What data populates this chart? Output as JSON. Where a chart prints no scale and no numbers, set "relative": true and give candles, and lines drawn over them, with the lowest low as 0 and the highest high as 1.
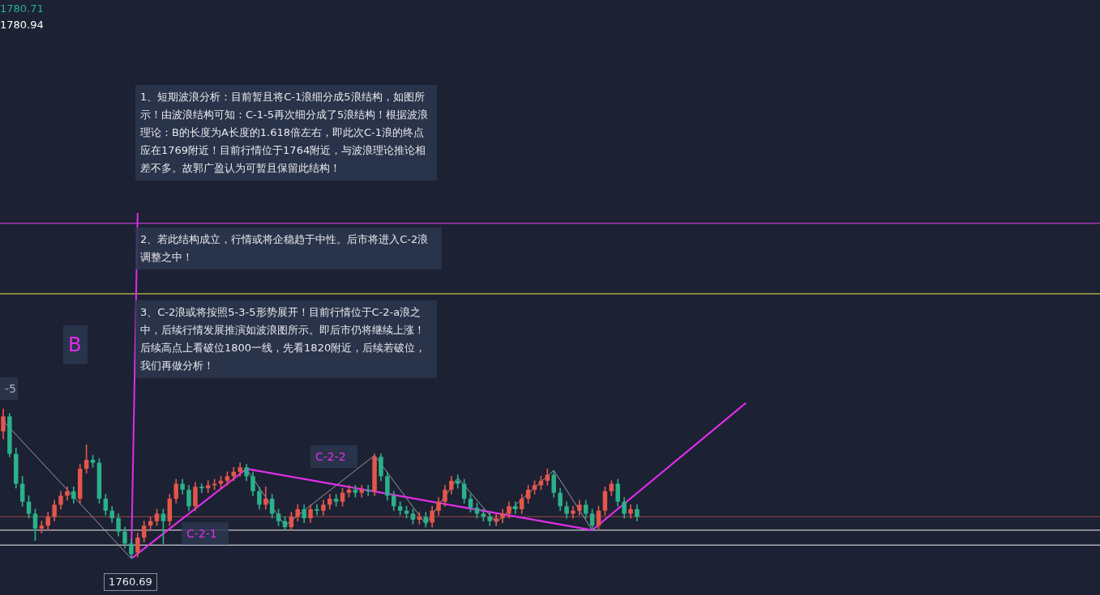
{
  "chart_data": {
    "type": "candlestick",
    "relative": true,
    "legend": false,
    "annotations": [
      "1、短期波浪分析：目前暂且将C-1浪细分成5浪结构，如图所示！由波浪结构可知：C-1-5再次细分成了5浪结构！根据波浪理论：B的长度为A长度的1.618倍左右，即此次C-1浪的终点应在1769附近！目前行情位于1764附近，与波浪理论推论相差不多。故郭广盈认为可暂且保留此结构！",
      "2、若此结构成立，行情或将企稳趋于中性。后市将进入C-2浪调整之中！",
      "3、C-2浪或将按照5-3-5形势展开！目前行情位于C-2-a浪之中，后续行情发展推演如波浪图所示。即后市仍将继续上涨！后续高点上看破位1800一线，先看1820附近，后续若破位，我们再做分析！",
      "B",
      "-5",
      "C-2-1",
      "C-2-2",
      "1760.69",
      "1780.71",
      "1780.94"
    ],
    "categories": [
      null,
      null,
      null,
      null,
      null,
      null,
      null,
      null,
      null,
      null,
      null,
      null,
      null,
      null,
      null,
      null,
      null,
      null,
      null,
      null,
      null,
      null,
      null,
      null,
      null,
      null,
      null,
      null,
      null,
      null,
      null,
      null,
      null,
      null,
      null,
      null,
      null,
      null,
      null,
      null,
      null,
      null,
      null,
      null,
      null,
      null,
      null,
      null,
      null,
      null,
      null,
      null,
      null,
      null,
      null,
      null,
      null,
      null,
      null,
      null,
      null,
      null,
      null,
      null,
      null,
      null,
      null,
      null,
      null,
      null,
      null,
      null,
      null,
      null,
      null,
      null,
      null,
      null,
      null,
      null,
      null,
      null,
      null,
      null,
      null,
      null,
      null,
      null,
      null,
      null,
      null,
      null,
      null,
      null,
      null,
      null,
      null,
      null,
      null,
      null,
      null,
      null,
      null,
      null,
      null,
      null,
      null,
      null,
      null,
      null,
      null,
      null,
      null,
      null,
      null,
      null,
      null,
      null
    ],
    "ohlc": [
      [
        0.85,
        1.0,
        0.8,
        0.95
      ],
      [
        0.95,
        0.97,
        0.68,
        0.7
      ],
      [
        0.7,
        0.74,
        0.47,
        0.5
      ],
      [
        0.5,
        0.55,
        0.35,
        0.38
      ],
      [
        0.38,
        0.42,
        0.27,
        0.3
      ],
      [
        0.3,
        0.33,
        0.12,
        0.2
      ],
      [
        0.2,
        0.25,
        0.17,
        0.22
      ],
      [
        0.22,
        0.31,
        0.19,
        0.28
      ],
      [
        0.28,
        0.39,
        0.25,
        0.36
      ],
      [
        0.36,
        0.45,
        0.33,
        0.42
      ],
      [
        0.42,
        0.48,
        0.39,
        0.45
      ],
      [
        0.45,
        0.48,
        0.37,
        0.4
      ],
      [
        0.4,
        0.63,
        0.37,
        0.6
      ],
      [
        0.6,
        0.76,
        0.57,
        0.66
      ],
      [
        0.66,
        0.69,
        0.61,
        0.64
      ],
      [
        0.64,
        0.67,
        0.37,
        0.4
      ],
      [
        0.4,
        0.43,
        0.29,
        0.32
      ],
      [
        0.32,
        0.35,
        0.24,
        0.27
      ],
      [
        0.27,
        0.3,
        0.15,
        0.18
      ],
      [
        0.18,
        0.21,
        0.07,
        0.1
      ],
      [
        0.1,
        0.13,
        0.0,
        0.03
      ],
      [
        0.04,
        0.17,
        0.01,
        0.14
      ],
      [
        0.14,
        0.25,
        0.11,
        0.22
      ],
      [
        0.22,
        0.28,
        0.19,
        0.25
      ],
      [
        0.25,
        0.33,
        0.22,
        0.3
      ],
      [
        0.3,
        0.33,
        0.1,
        0.25
      ],
      [
        0.25,
        0.43,
        0.22,
        0.4
      ],
      [
        0.4,
        0.53,
        0.37,
        0.5
      ],
      [
        0.5,
        0.53,
        0.43,
        0.46
      ],
      [
        0.46,
        0.49,
        0.32,
        0.35
      ],
      [
        0.35,
        0.51,
        0.32,
        0.48
      ],
      [
        0.48,
        0.5,
        0.44,
        0.47
      ],
      [
        0.47,
        0.52,
        0.44,
        0.49
      ],
      [
        0.49,
        0.53,
        0.46,
        0.5
      ],
      [
        0.5,
        0.55,
        0.47,
        0.52
      ],
      [
        0.52,
        0.58,
        0.49,
        0.55
      ],
      [
        0.55,
        0.61,
        0.52,
        0.58
      ],
      [
        0.58,
        0.64,
        0.55,
        0.61
      ],
      [
        0.61,
        0.63,
        0.52,
        0.55
      ],
      [
        0.55,
        0.58,
        0.42,
        0.45
      ],
      [
        0.45,
        0.48,
        0.33,
        0.36
      ],
      [
        0.36,
        0.48,
        0.33,
        0.4
      ],
      [
        0.4,
        0.43,
        0.27,
        0.3
      ],
      [
        0.3,
        0.33,
        0.22,
        0.25
      ],
      [
        0.25,
        0.28,
        0.19,
        0.21
      ],
      [
        0.21,
        0.31,
        0.19,
        0.28
      ],
      [
        0.28,
        0.36,
        0.25,
        0.33
      ],
      [
        0.33,
        0.36,
        0.24,
        0.27
      ],
      [
        0.27,
        0.36,
        0.24,
        0.33
      ],
      [
        0.33,
        0.36,
        0.29,
        0.32
      ],
      [
        0.32,
        0.39,
        0.29,
        0.36
      ],
      [
        0.36,
        0.43,
        0.33,
        0.4
      ],
      [
        0.4,
        0.43,
        0.35,
        0.38
      ],
      [
        0.38,
        0.47,
        0.35,
        0.44
      ],
      [
        0.44,
        0.49,
        0.41,
        0.46
      ],
      [
        0.46,
        0.49,
        0.41,
        0.44
      ],
      [
        0.44,
        0.49,
        0.41,
        0.46
      ],
      [
        0.46,
        0.49,
        0.42,
        0.45
      ],
      [
        0.45,
        0.7,
        0.42,
        0.68
      ],
      [
        0.68,
        0.7,
        0.52,
        0.55
      ],
      [
        0.55,
        0.58,
        0.39,
        0.42
      ],
      [
        0.42,
        0.45,
        0.32,
        0.35
      ],
      [
        0.35,
        0.38,
        0.29,
        0.32
      ],
      [
        0.32,
        0.35,
        0.27,
        0.3
      ],
      [
        0.3,
        0.33,
        0.23,
        0.26
      ],
      [
        0.26,
        0.31,
        0.23,
        0.28
      ],
      [
        0.28,
        0.31,
        0.21,
        0.24
      ],
      [
        0.24,
        0.35,
        0.21,
        0.32
      ],
      [
        0.32,
        0.41,
        0.29,
        0.38
      ],
      [
        0.38,
        0.49,
        0.35,
        0.46
      ],
      [
        0.46,
        0.55,
        0.43,
        0.52
      ],
      [
        0.52,
        0.56,
        0.47,
        0.5
      ],
      [
        0.5,
        0.53,
        0.37,
        0.4
      ],
      [
        0.4,
        0.43,
        0.31,
        0.34
      ],
      [
        0.34,
        0.37,
        0.27,
        0.3
      ],
      [
        0.3,
        0.33,
        0.25,
        0.28
      ],
      [
        0.28,
        0.31,
        0.22,
        0.25
      ],
      [
        0.25,
        0.3,
        0.22,
        0.27
      ],
      [
        0.27,
        0.33,
        0.24,
        0.3
      ],
      [
        0.3,
        0.38,
        0.27,
        0.35
      ],
      [
        0.35,
        0.38,
        0.3,
        0.33
      ],
      [
        0.33,
        0.43,
        0.3,
        0.4
      ],
      [
        0.4,
        0.49,
        0.37,
        0.46
      ],
      [
        0.46,
        0.52,
        0.43,
        0.49
      ],
      [
        0.49,
        0.55,
        0.46,
        0.52
      ],
      [
        0.52,
        0.6,
        0.49,
        0.56
      ],
      [
        0.56,
        0.59,
        0.41,
        0.44
      ],
      [
        0.44,
        0.47,
        0.32,
        0.35
      ],
      [
        0.35,
        0.38,
        0.27,
        0.3
      ],
      [
        0.3,
        0.35,
        0.27,
        0.32
      ],
      [
        0.32,
        0.39,
        0.29,
        0.36
      ],
      [
        0.36,
        0.39,
        0.27,
        0.3
      ],
      [
        0.3,
        0.33,
        0.19,
        0.22
      ],
      [
        0.22,
        0.35,
        0.19,
        0.32
      ],
      [
        0.32,
        0.48,
        0.29,
        0.45
      ],
      [
        0.45,
        0.52,
        0.42,
        0.5
      ],
      [
        0.5,
        0.53,
        0.35,
        0.38
      ],
      [
        0.38,
        0.41,
        0.27,
        0.3
      ],
      [
        0.3,
        0.36,
        0.27,
        0.33
      ],
      [
        0.33,
        0.36,
        0.25,
        0.28
      ],
      null,
      null,
      null,
      null,
      null,
      null,
      null,
      null,
      null,
      null,
      null,
      null,
      null,
      null,
      null,
      null,
      null,
      null
    ],
    "series": [
      {
        "type": "line",
        "color": "#e02ee8",
        "values": [
          null,
          null,
          null,
          null,
          null,
          null,
          null,
          null,
          null,
          null,
          null,
          null,
          null,
          null,
          null,
          null,
          null,
          null,
          null,
          null,
          0,
          null,
          null,
          null,
          null,
          null,
          null,
          null,
          null,
          null,
          null,
          null,
          null,
          null,
          null,
          null,
          null,
          null,
          0.6,
          null,
          null,
          null,
          null,
          null,
          null,
          null,
          null,
          null,
          null,
          null,
          null,
          null,
          null,
          null,
          null,
          null,
          null,
          null,
          null,
          null,
          null,
          null,
          null,
          null,
          null,
          null,
          null,
          null,
          null,
          null,
          null,
          null,
          null,
          null,
          null,
          null,
          null,
          null,
          null,
          null,
          null,
          null,
          null,
          null,
          null,
          null,
          null,
          null,
          null,
          null,
          null,
          null,
          0.19,
          null,
          null,
          null,
          null,
          null,
          null,
          null,
          null,
          null,
          null,
          null,
          null,
          null,
          null,
          null,
          null,
          null,
          null,
          null,
          null,
          null,
          null,
          null,
          1.04,
          null
        ]
      },
      {
        "type": "line",
        "color": "#e02ee8",
        "values": [
          null,
          null,
          null,
          null,
          null,
          null,
          null,
          null,
          null,
          null,
          null,
          null,
          null,
          null,
          null,
          null,
          null,
          null,
          null,
          null,
          0,
          2.31,
          null,
          null,
          null,
          null,
          null,
          null,
          null,
          null,
          null,
          null,
          null,
          null,
          null,
          null,
          null,
          null,
          null,
          null,
          null,
          null,
          null,
          null,
          null,
          null,
          null,
          null,
          null,
          null,
          null,
          null,
          null,
          null,
          null,
          null,
          null,
          null,
          null,
          null,
          null,
          null,
          null,
          null,
          null,
          null,
          null,
          null,
          null,
          null,
          null,
          null,
          null,
          null,
          null,
          null,
          null,
          null,
          null,
          null,
          null,
          null,
          null,
          null,
          null,
          null,
          null,
          null,
          null,
          null,
          null,
          null,
          null,
          null,
          null,
          null,
          null,
          null,
          null,
          null,
          null,
          null,
          null,
          null,
          null,
          null,
          null,
          null,
          null,
          null,
          null,
          null,
          null,
          null,
          null,
          null,
          null,
          null
        ]
      },
      {
        "type": "line",
        "color": "#9a9aa8",
        "values": [
          0.92,
          null,
          null,
          null,
          null,
          null,
          null,
          null,
          null,
          null,
          null,
          null,
          null,
          null,
          null,
          null,
          null,
          null,
          null,
          null,
          0,
          null,
          null,
          null,
          null,
          null,
          null,
          null,
          null,
          null,
          null,
          null,
          null,
          null,
          null,
          null,
          null,
          null,
          0.6,
          null,
          null,
          null,
          null,
          null,
          0.22,
          null,
          null,
          null,
          null,
          null,
          null,
          null,
          null,
          null,
          null,
          null,
          null,
          null,
          0.69,
          null,
          null,
          null,
          null,
          null,
          null,
          null,
          0.23,
          null,
          null,
          null,
          null,
          0.54,
          null,
          null,
          null,
          null,
          null,
          0.24,
          null,
          null,
          null,
          null,
          null,
          null,
          null,
          null,
          0.59,
          null,
          null,
          null,
          null,
          null,
          0.19,
          null,
          null,
          null,
          null,
          null,
          null,
          null,
          null,
          null,
          null,
          null,
          null,
          null,
          null,
          null,
          null,
          null,
          null,
          null,
          null,
          null,
          null,
          null,
          null,
          null
        ]
      }
    ],
    "ref_lines": [
      {
        "axis": "y",
        "value": 2.24,
        "color": "#c23bcb"
      },
      {
        "axis": "y",
        "value": 1.77,
        "color": "#c9c24a"
      },
      {
        "axis": "y",
        "value": 0.28,
        "color": "#9a4a44"
      },
      {
        "axis": "y",
        "value": 0.19,
        "color": "#c8c8cc"
      },
      {
        "axis": "y",
        "value": 0.09,
        "color": "#c8c8cc"
      }
    ]
  }
}
